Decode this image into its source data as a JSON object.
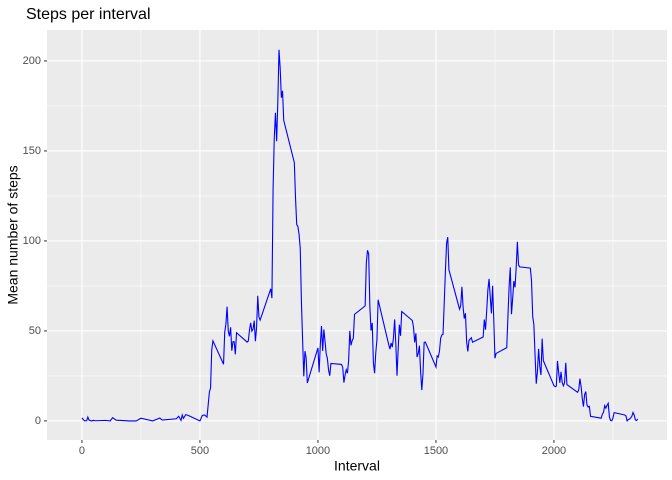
{
  "chart_data": {
    "type": "line",
    "title": "Steps per interval",
    "x_label": "Interval",
    "y_label": "Mean number of steps",
    "x": [
      0,
      10,
      20,
      25,
      30,
      40,
      50,
      55,
      100,
      120,
      130,
      145,
      200,
      230,
      250,
      300,
      330,
      340,
      400,
      410,
      420,
      425,
      430,
      440,
      450,
      500,
      510,
      520,
      530,
      540,
      545,
      550,
      555,
      600,
      605,
      610,
      615,
      620,
      625,
      630,
      635,
      640,
      645,
      650,
      655,
      700,
      705,
      710,
      715,
      720,
      725,
      730,
      735,
      740,
      745,
      750,
      755,
      800,
      805,
      810,
      815,
      820,
      825,
      830,
      835,
      840,
      845,
      850,
      855,
      900,
      905,
      910,
      915,
      920,
      925,
      930,
      935,
      940,
      945,
      950,
      955,
      1000,
      1005,
      1010,
      1015,
      1020,
      1025,
      1030,
      1035,
      1040,
      1045,
      1050,
      1055,
      1100,
      1105,
      1110,
      1115,
      1120,
      1125,
      1130,
      1135,
      1140,
      1145,
      1150,
      1155,
      1200,
      1205,
      1210,
      1215,
      1220,
      1225,
      1230,
      1235,
      1240,
      1245,
      1250,
      1255,
      1300,
      1305,
      1310,
      1315,
      1320,
      1325,
      1330,
      1335,
      1340,
      1345,
      1350,
      1355,
      1400,
      1405,
      1410,
      1415,
      1420,
      1425,
      1430,
      1435,
      1440,
      1445,
      1450,
      1455,
      1500,
      1505,
      1510,
      1515,
      1520,
      1525,
      1530,
      1535,
      1540,
      1545,
      1550,
      1555,
      1600,
      1605,
      1610,
      1615,
      1620,
      1625,
      1630,
      1635,
      1640,
      1645,
      1650,
      1655,
      1700,
      1705,
      1710,
      1715,
      1720,
      1725,
      1730,
      1735,
      1740,
      1745,
      1750,
      1755,
      1800,
      1805,
      1810,
      1815,
      1820,
      1825,
      1830,
      1835,
      1840,
      1845,
      1850,
      1855,
      1900,
      1905,
      1910,
      1915,
      1920,
      1925,
      1930,
      1935,
      1940,
      1945,
      1950,
      1955,
      2000,
      2005,
      2010,
      2015,
      2020,
      2025,
      2030,
      2035,
      2040,
      2045,
      2050,
      2055,
      2100,
      2105,
      2110,
      2115,
      2120,
      2125,
      2130,
      2135,
      2140,
      2145,
      2150,
      2155,
      2200,
      2205,
      2210,
      2215,
      2220,
      2225,
      2230,
      2235,
      2240,
      2245,
      2250,
      2255,
      2300,
      2305,
      2310,
      2315,
      2320,
      2325,
      2330,
      2335,
      2340,
      2345,
      2350,
      2355
    ],
    "series": [
      {
        "name": "steps",
        "color": "#0000ff",
        "values": [
          1.7,
          0.1,
          0.1,
          2.1,
          0.5,
          0,
          0.3,
          0.1,
          0.3,
          0,
          1.8,
          0.4,
          0,
          0,
          1.5,
          0,
          1.6,
          0.5,
          1.2,
          2.6,
          0.3,
          3.3,
          1.4,
          3.5,
          3.1,
          0,
          3,
          3.3,
          2.1,
          16,
          18.3,
          39.5,
          44.5,
          31.5,
          49.3,
          53.8,
          63.5,
          50,
          47,
          52,
          39,
          44,
          44,
          37,
          49,
          43.8,
          44.4,
          50.5,
          54.5,
          49.9,
          51,
          55.7,
          44.3,
          52,
          69.5,
          57.8,
          56,
          73.4,
          68.2,
          129.4,
          157.5,
          171.2,
          155.4,
          177.3,
          206.2,
          195.9,
          179.6,
          183.4,
          167,
          143.5,
          124,
          109.1,
          108.1,
          103.7,
          95.9,
          66.2,
          45.2,
          24.8,
          38.8,
          35,
          21.1,
          40.6,
          27,
          42.4,
          52.7,
          38.9,
          50.8,
          44.3,
          37.4,
          34.7,
          28.3,
          25.1,
          31.9,
          31.4,
          29.7,
          21.3,
          25.5,
          28.4,
          26.5,
          33.4,
          50,
          42,
          44.6,
          46,
          59.2,
          63.9,
          87.7,
          94.8,
          92.8,
          63.4,
          50.2,
          54.5,
          32.4,
          26.5,
          37.7,
          45.1,
          67.3,
          42.3,
          39.9,
          43.3,
          41,
          46.2,
          56.4,
          42.8,
          25.1,
          40,
          53.5,
          47.3,
          60.8,
          55.8,
          52,
          43.6,
          48.7,
          35.5,
          37.5,
          41.8,
          27.5,
          17.1,
          26.1,
          43.6,
          43.8,
          30,
          36.1,
          35.5,
          38.8,
          46,
          47.8,
          48.1,
          65.3,
          82.9,
          98.7,
          102.1,
          84,
          62.1,
          64.1,
          74.5,
          63.2,
          56.9,
          59.8,
          43.9,
          38.6,
          44.7,
          45.5,
          46.2,
          43.7,
          46.6,
          56.3,
          50.7,
          61.2,
          72.7,
          78.9,
          68.9,
          59.7,
          75.1,
          56.5,
          34.8,
          37.5,
          40.7,
          58,
          74.7,
          85.3,
          59.3,
          67.8,
          77.7,
          74.2,
          85.3,
          99.5,
          86.6,
          85.6,
          84.9,
          77.8,
          58,
          53.4,
          36.3,
          20.7,
          27.4,
          40,
          30.2,
          25.5,
          45.7,
          33.5,
          19.6,
          19,
          19.3,
          33.3,
          26.8,
          21.2,
          27.3,
          21.3,
          19.5,
          21.3,
          32.3,
          20.2,
          15.9,
          17.2,
          23.5,
          19.2,
          12.5,
          8,
          14.7,
          16.3,
          8.7,
          7.8,
          8.1,
          2.6,
          1.5,
          3.7,
          4.8,
          8.5,
          7.1,
          8.7,
          9.8,
          2.2,
          0.3,
          0.1,
          1.6,
          4.6,
          3.3,
          2.8,
          0,
          0.8,
          1,
          1.6,
          2.6,
          4.7,
          3.3,
          0.6,
          0.2,
          1.1
        ]
      }
    ],
    "xlim": [
      -148,
      2479
    ],
    "xticks": [
      0,
      500,
      1000,
      1500,
      2000
    ],
    "xminorticks": [
      250,
      750,
      1250,
      1750,
      2250
    ],
    "ylim": [
      -10.6,
      217.2
    ],
    "yticks": [
      0,
      50,
      100,
      150,
      200
    ],
    "yminorticks": [
      25,
      75,
      125,
      175
    ],
    "grid": true
  }
}
